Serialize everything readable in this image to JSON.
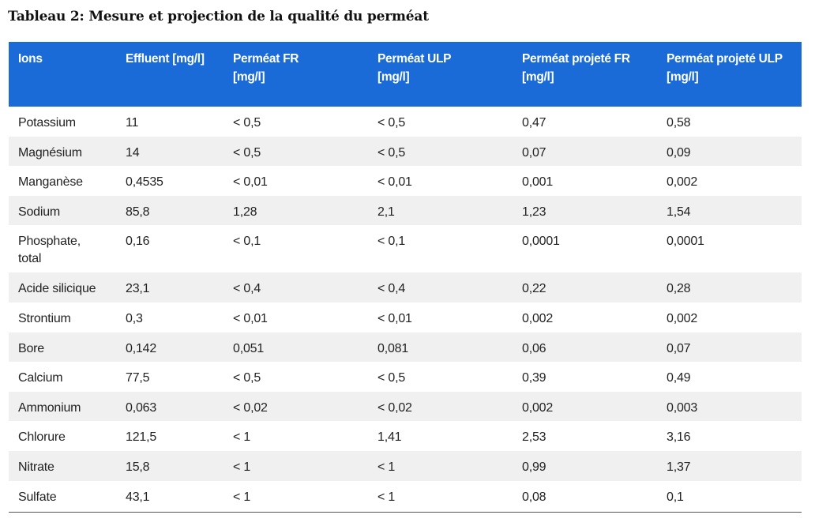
{
  "title": "Tableau 2: Mesure et projection de la qualité du perméat",
  "header": [
    [
      "Ions"
    ],
    [
      "Effluent [mg/l]"
    ],
    [
      "Perméat FR",
      "[mg/l]"
    ],
    [
      "Perméat ULP",
      "[mg/l]"
    ],
    [
      "Perméat projeté FR",
      "[mg/l]"
    ],
    [
      "Perméat projeté ULP",
      "[mg/l]"
    ]
  ],
  "rows": [
    [
      "Potassium",
      "11",
      "< 0,5",
      "< 0,5",
      "0,47",
      "0,58"
    ],
    [
      "Magnésium",
      "14",
      "< 0,5",
      "< 0,5",
      "0,07",
      "0,09"
    ],
    [
      "Manganèse",
      "0,4535",
      "< 0,01",
      "< 0,01",
      "0,001",
      "0,002"
    ],
    [
      "Sodium",
      "85,8",
      "1,28",
      "2,1",
      "1,23",
      "1,54"
    ],
    [
      "Phosphate,\ntotal",
      "0,16",
      "< 0,1",
      "< 0,1",
      "0,0001",
      "0,0001"
    ],
    [
      "Acide silicique",
      "23,1",
      "< 0,4",
      "< 0,4",
      "0,22",
      "0,28"
    ],
    [
      "Strontium",
      "0,3",
      "< 0,01",
      "< 0,01",
      "0,002",
      "0,002"
    ],
    [
      "Bore",
      "0,142",
      "0,051",
      "0,081",
      "0,06",
      "0,07"
    ],
    [
      "Calcium",
      "77,5",
      "< 0,5",
      "< 0,5",
      "0,39",
      "0,49"
    ],
    [
      "Ammonium",
      "0,063",
      "< 0,02",
      "< 0,02",
      "0,002",
      "0,003"
    ],
    [
      "Chlorure",
      "121,5",
      "< 1",
      "1,41",
      "2,53",
      "3,16"
    ],
    [
      "Nitrate",
      "15,8",
      "< 1",
      "< 1",
      "0,99",
      "1,37"
    ],
    [
      "Sulfate",
      "43,1",
      "< 1",
      "< 1",
      "0,08",
      "0,1"
    ]
  ],
  "colors": {
    "header_bg": "#1a6bd8",
    "header_text": "#ffffff",
    "stripe": "#f0f0f0"
  }
}
